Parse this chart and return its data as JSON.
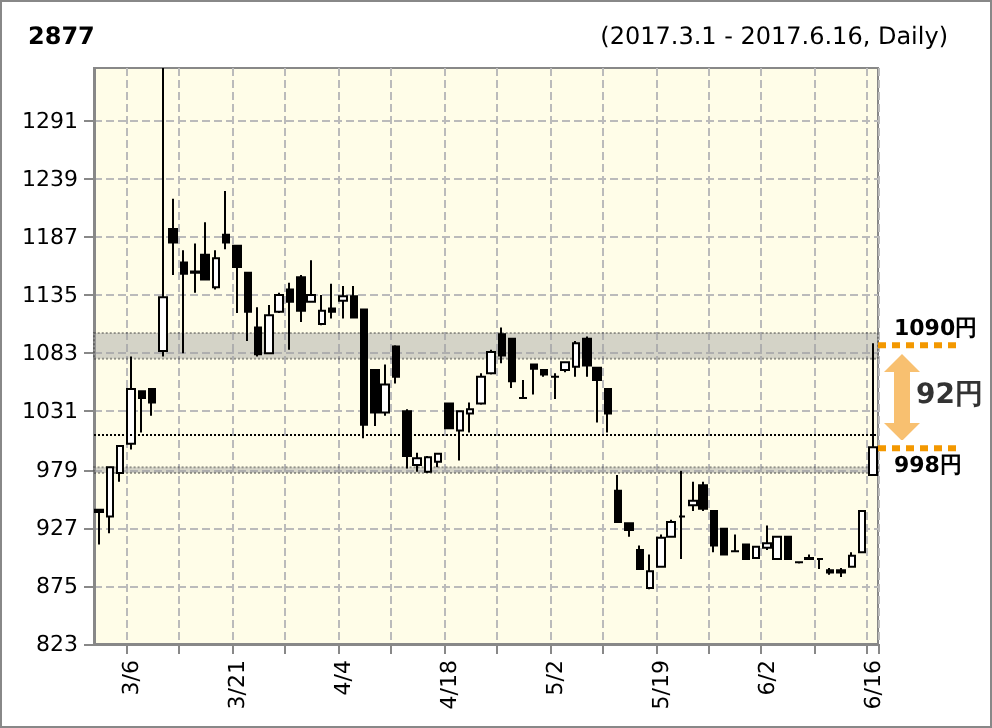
{
  "chart_data": {
    "type": "candlestick",
    "title": "2877",
    "subtitle": "(2017.3.1 - 2017.6.16, Daily)",
    "categories": [
      null,
      null,
      null,
      "3/6",
      null,
      null,
      null,
      null,
      null,
      null,
      null,
      null,
      null,
      "3/21",
      null,
      null,
      null,
      null,
      null,
      null,
      null,
      null,
      null,
      "4/4",
      null,
      null,
      null,
      null,
      null,
      null,
      null,
      null,
      null,
      "4/18",
      null,
      null,
      null,
      null,
      null,
      null,
      null,
      null,
      null,
      "5/2",
      null,
      null,
      null,
      null,
      null,
      null,
      null,
      null,
      null,
      "5/19",
      null,
      null,
      null,
      null,
      null,
      null,
      null,
      null,
      null,
      "6/2",
      null,
      null,
      null,
      null,
      null,
      null,
      null,
      null,
      null,
      "6/16"
    ],
    "ohlc": [
      [
        943,
        943,
        912,
        941
      ],
      [
        937,
        981,
        922,
        981
      ],
      [
        976,
        1000,
        968,
        1000
      ],
      [
        1002,
        1080,
        997,
        1051
      ],
      [
        1049,
        1049,
        1012,
        1043
      ],
      [
        1051,
        1051,
        1027,
        1039
      ],
      [
        1085,
        1338,
        1080,
        1133
      ],
      [
        1194,
        1221,
        1153,
        1182
      ],
      [
        1164,
        1175,
        1083,
        1154
      ],
      [
        1156,
        1181,
        1137,
        1155
      ],
      [
        1171,
        1200,
        1148,
        1149
      ],
      [
        1142,
        1175,
        1140,
        1168
      ],
      [
        1189,
        1228,
        1176,
        1182
      ],
      [
        1179,
        1180,
        1119,
        1160
      ],
      [
        1155,
        1155,
        1094,
        1120
      ],
      [
        1106,
        1124,
        1080,
        1082
      ],
      [
        1083,
        1126,
        1082,
        1117
      ],
      [
        1120,
        1137,
        1119,
        1135
      ],
      [
        1140,
        1146,
        1086,
        1129
      ],
      [
        1151,
        1153,
        1111,
        1121
      ],
      [
        1129,
        1166,
        1128,
        1135
      ],
      [
        1109,
        1135,
        1108,
        1121
      ],
      [
        1123,
        1145,
        1114,
        1120
      ],
      [
        1130,
        1143,
        1114,
        1134
      ],
      [
        1134,
        1143,
        1115,
        1115
      ],
      [
        1122,
        1122,
        1007,
        1019
      ],
      [
        1068,
        1068,
        1018,
        1030
      ],
      [
        1030,
        1073,
        1027,
        1055
      ],
      [
        1089,
        1090,
        1056,
        1062
      ],
      [
        1031,
        1033,
        980,
        991
      ],
      [
        983,
        994,
        977,
        989
      ],
      [
        977,
        991,
        976,
        990
      ],
      [
        986,
        993,
        981,
        993
      ],
      [
        1038,
        1038,
        1015,
        1016
      ],
      [
        1014,
        1031,
        987,
        1031
      ],
      [
        1029,
        1039,
        1012,
        1033
      ],
      [
        1038,
        1065,
        1037,
        1062
      ],
      [
        1065,
        1086,
        1064,
        1084
      ],
      [
        1100,
        1106,
        1074,
        1081
      ],
      [
        1096,
        1096,
        1052,
        1058
      ],
      [
        1043,
        1059,
        1042,
        1043
      ],
      [
        1073,
        1073,
        1046,
        1069
      ],
      [
        1068,
        1068,
        1062,
        1064
      ],
      [
        1062,
        1065,
        1042,
        1062
      ],
      [
        1068,
        1075,
        1066,
        1075
      ],
      [
        1071,
        1094,
        1062,
        1092
      ],
      [
        1096,
        1098,
        1062,
        1072
      ],
      [
        1070,
        1071,
        1021,
        1059
      ],
      [
        1051,
        1051,
        1012,
        1029
      ],
      [
        960,
        974,
        932,
        932
      ],
      [
        931,
        931,
        919,
        925
      ],
      [
        907,
        911,
        890,
        890
      ],
      [
        873,
        903,
        872,
        888
      ],
      [
        892,
        921,
        892,
        918
      ],
      [
        919,
        934,
        918,
        932
      ],
      [
        937,
        978,
        899,
        937
      ],
      [
        947,
        968,
        942,
        951
      ],
      [
        965,
        968,
        942,
        944
      ],
      [
        942,
        942,
        905,
        911
      ],
      [
        926,
        926,
        903,
        903
      ],
      [
        906,
        921,
        905,
        906
      ],
      [
        912,
        912,
        898,
        899
      ],
      [
        900,
        910,
        899,
        910
      ],
      [
        909,
        929,
        907,
        913
      ],
      [
        899,
        919,
        898,
        919
      ],
      [
        919,
        919,
        898,
        899
      ],
      [
        896,
        896,
        895,
        896
      ],
      [
        900,
        903,
        898,
        899
      ],
      [
        899,
        899,
        890,
        899
      ],
      [
        889,
        891,
        885,
        887
      ],
      [
        889,
        891,
        883,
        887
      ],
      [
        892,
        905,
        892,
        902
      ],
      [
        905,
        942,
        905,
        942
      ],
      [
        974,
        1092,
        974,
        999
      ]
    ],
    "color": "#000000",
    "ylim": [
      823,
      1338
    ],
    "yticks": [
      823,
      875,
      927,
      979,
      1031,
      1083,
      1135,
      1187,
      1239,
      1291
    ],
    "grid": true,
    "bands": [
      {
        "axis": "y",
        "from": 1078,
        "to": 1101,
        "color": "#a0a0a0"
      },
      {
        "axis": "y",
        "from": 976,
        "to": 981,
        "color": "#a0a0a0"
      }
    ],
    "ref_lines": [
      {
        "axis": "y",
        "value": 1011,
        "line_style": "dotted",
        "color": "#000000"
      },
      {
        "axis": "y",
        "value": 1090,
        "label": "1090円",
        "line_style": "dashed",
        "color": "#f39800"
      },
      {
        "axis": "y",
        "value": 998,
        "label": "998円",
        "line_style": "dashed",
        "color": "#f39800"
      }
    ],
    "annotations": [
      "92円"
    ]
  }
}
